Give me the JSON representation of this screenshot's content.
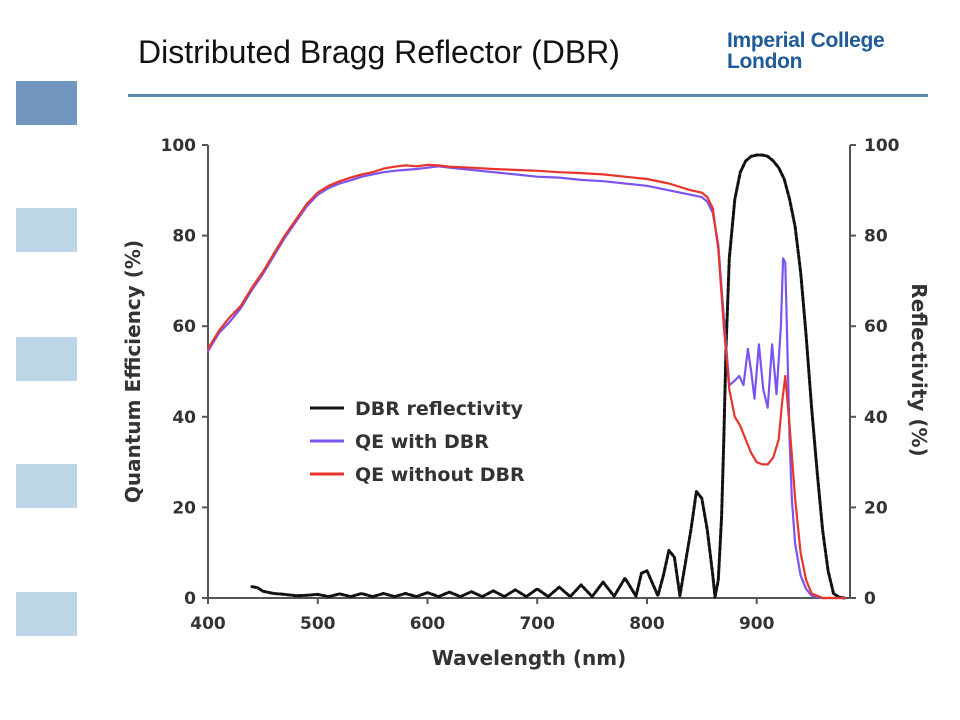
{
  "slide": {
    "title": "Distributed Bragg Reflector (DBR)",
    "logo_line1": "Imperial College",
    "logo_line2": "London"
  },
  "colors": {
    "title_rule": "#5e87ad",
    "side_block_active": "#7196bf",
    "side_block": "#bcd6e8",
    "logo": "#1f5b98",
    "dbr": "#111111",
    "qe_with": "#7b54f0",
    "qe_without": "#e8352b"
  },
  "chart_data": {
    "type": "line",
    "xlabel": "Wavelength (nm)",
    "ylabel": "Quantum Efficiency (%)",
    "y2label": "Reflectivity (%)",
    "xlim": [
      400,
      985
    ],
    "ylim": [
      0,
      100
    ],
    "y2lim": [
      0,
      100
    ],
    "x_ticks": [
      "400",
      "500",
      "600",
      "700",
      "800",
      "900"
    ],
    "y_ticks": [
      "0",
      "20",
      "40",
      "60",
      "80",
      "100"
    ],
    "y2_ticks": [
      "0",
      "20",
      "40",
      "60",
      "80",
      "100"
    ],
    "grid": false,
    "legend_position": "center-left",
    "series": [
      {
        "name": "DBR reflectivity",
        "color": "#111111",
        "axis": "right",
        "x": [
          440,
          445,
          450,
          460,
          470,
          480,
          490,
          500,
          510,
          520,
          530,
          540,
          550,
          560,
          570,
          580,
          590,
          600,
          610,
          620,
          630,
          640,
          650,
          660,
          670,
          680,
          690,
          700,
          710,
          720,
          730,
          740,
          750,
          760,
          770,
          780,
          790,
          795,
          800,
          810,
          815,
          820,
          825,
          830,
          840,
          845,
          850,
          855,
          860,
          862,
          865,
          868,
          870,
          872,
          875,
          880,
          885,
          890,
          895,
          900,
          905,
          910,
          915,
          920,
          925,
          930,
          935,
          940,
          945,
          950,
          955,
          960,
          965,
          970,
          975,
          980
        ],
        "y": [
          2.5,
          2.3,
          1.5,
          1.0,
          0.8,
          0.5,
          0.6,
          0.8,
          0.3,
          0.9,
          0.3,
          1.0,
          0.3,
          1.0,
          0.3,
          1.0,
          0.3,
          1.2,
          0.3,
          1.3,
          0.3,
          1.4,
          0.3,
          1.6,
          0.3,
          1.8,
          0.3,
          2.0,
          0.3,
          2.4,
          0.3,
          2.9,
          0.3,
          3.5,
          0.4,
          4.4,
          0.4,
          5.5,
          6.0,
          0.5,
          5.0,
          10.5,
          9.0,
          0.5,
          15.0,
          23.5,
          22.0,
          15.0,
          5.0,
          0.2,
          4.0,
          18.0,
          35.0,
          55.0,
          75.0,
          88.0,
          94.0,
          96.5,
          97.5,
          97.8,
          97.8,
          97.5,
          96.5,
          95.0,
          92.5,
          88.0,
          82.0,
          72.0,
          58.0,
          42.0,
          28.0,
          15.0,
          6.0,
          1.0,
          0.2,
          0.0
        ]
      },
      {
        "name": "QE with DBR",
        "color": "#7b54f0",
        "axis": "left",
        "x": [
          400,
          410,
          420,
          430,
          440,
          450,
          460,
          470,
          480,
          490,
          500,
          510,
          520,
          530,
          540,
          550,
          560,
          570,
          580,
          590,
          600,
          610,
          620,
          640,
          660,
          680,
          700,
          720,
          740,
          760,
          780,
          800,
          820,
          840,
          850,
          855,
          860,
          865,
          870,
          875,
          880,
          884,
          888,
          892,
          895,
          898,
          902,
          906,
          910,
          914,
          918,
          922,
          924,
          926,
          928,
          930,
          932,
          935,
          940,
          945,
          950,
          955,
          960,
          965,
          970,
          975,
          980
        ],
        "y": [
          54.5,
          58.5,
          61,
          64,
          68,
          71.5,
          75.5,
          79.5,
          83,
          86.5,
          89,
          90.5,
          91.5,
          92.2,
          93,
          93.5,
          94,
          94.3,
          94.5,
          94.7,
          95,
          95.3,
          95,
          94.5,
          94,
          93.5,
          93,
          92.8,
          92.3,
          92,
          91.5,
          91,
          90,
          89,
          88.5,
          87.5,
          85,
          78,
          62,
          47,
          48,
          49,
          47,
          55,
          50,
          44,
          56,
          46,
          42,
          56,
          45,
          60,
          75,
          74,
          55,
          35,
          22,
          12,
          5,
          2,
          0.5,
          0.2,
          0,
          0,
          0,
          0,
          0
        ]
      },
      {
        "name": "QE without DBR",
        "color": "#e8352b",
        "axis": "left",
        "x": [
          400,
          410,
          420,
          430,
          440,
          450,
          460,
          470,
          480,
          490,
          500,
          510,
          520,
          530,
          540,
          550,
          560,
          570,
          580,
          590,
          600,
          610,
          620,
          640,
          660,
          680,
          700,
          720,
          740,
          760,
          780,
          800,
          820,
          840,
          850,
          855,
          860,
          865,
          870,
          875,
          880,
          885,
          890,
          895,
          900,
          905,
          910,
          915,
          920,
          923,
          926,
          930,
          935,
          940,
          945,
          950,
          955,
          960,
          965,
          970,
          975,
          980
        ],
        "y": [
          55,
          59,
          62,
          64.5,
          68.5,
          72,
          76,
          80,
          83.5,
          87,
          89.5,
          91,
          92,
          92.8,
          93.5,
          94,
          94.8,
          95.2,
          95.5,
          95.3,
          95.6,
          95.5,
          95.2,
          95,
          94.7,
          94.5,
          94.3,
          94,
          93.8,
          93.5,
          93,
          92.5,
          91.5,
          90,
          89.5,
          88.5,
          86,
          77,
          60,
          46,
          40,
          38,
          35,
          32,
          30,
          29.5,
          29.5,
          31,
          35,
          43,
          49,
          38,
          22,
          10,
          4,
          1,
          0.5,
          0,
          0,
          0,
          0,
          0
        ]
      }
    ]
  }
}
